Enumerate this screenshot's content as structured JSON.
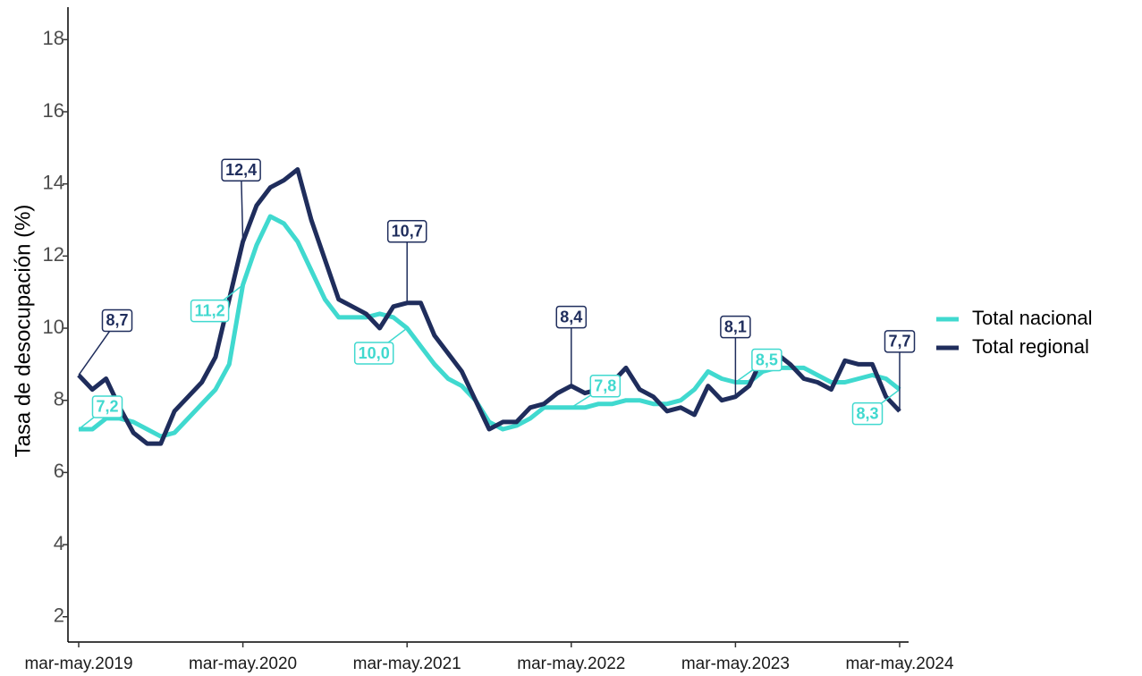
{
  "chart_data": {
    "type": "line",
    "y_label": "Tasa de desocupación (%)",
    "categories": [
      "mar-may.2019",
      null,
      null,
      null,
      null,
      null,
      null,
      null,
      null,
      null,
      null,
      null,
      "mar-may.2020",
      null,
      null,
      null,
      null,
      null,
      null,
      null,
      null,
      null,
      null,
      null,
      "mar-may.2021",
      null,
      null,
      null,
      null,
      null,
      null,
      null,
      null,
      null,
      null,
      null,
      "mar-may.2022",
      null,
      null,
      null,
      null,
      null,
      null,
      null,
      null,
      null,
      null,
      null,
      "mar-may.2023",
      null,
      null,
      null,
      null,
      null,
      null,
      null,
      null,
      null,
      null,
      null,
      "mar-may.2024"
    ],
    "series": [
      {
        "name": "Total nacional",
        "color": "#40d9cf",
        "values": [
          7.2,
          7.2,
          7.5,
          7.5,
          7.4,
          7.2,
          7.0,
          7.1,
          7.5,
          7.9,
          8.3,
          9.0,
          11.2,
          12.3,
          13.1,
          12.9,
          12.4,
          11.6,
          10.8,
          10.3,
          10.3,
          10.3,
          10.4,
          10.3,
          10.0,
          9.5,
          9.0,
          8.6,
          8.4,
          8.0,
          7.4,
          7.2,
          7.3,
          7.5,
          7.8,
          7.8,
          7.8,
          7.8,
          7.9,
          7.9,
          8.0,
          8.0,
          7.9,
          7.9,
          8.0,
          8.3,
          8.8,
          8.6,
          8.5,
          8.5,
          8.8,
          8.9,
          8.9,
          8.9,
          8.7,
          8.5,
          8.5,
          8.6,
          8.7,
          8.6,
          8.3
        ],
        "value_labels": [
          "7,2",
          null,
          null,
          null,
          null,
          null,
          null,
          null,
          null,
          null,
          null,
          null,
          "11,2",
          null,
          null,
          null,
          null,
          null,
          null,
          null,
          null,
          null,
          null,
          null,
          "10,0",
          null,
          null,
          null,
          null,
          null,
          null,
          null,
          null,
          null,
          null,
          null,
          "7,8",
          null,
          null,
          null,
          null,
          null,
          null,
          null,
          null,
          null,
          null,
          null,
          "8,5",
          null,
          null,
          null,
          null,
          null,
          null,
          null,
          null,
          null,
          null,
          null,
          "8,3"
        ]
      },
      {
        "name": "Total regional",
        "color": "#1f2d5c",
        "values": [
          8.7,
          8.3,
          8.6,
          7.8,
          7.1,
          6.8,
          6.8,
          7.7,
          8.1,
          8.5,
          9.2,
          10.8,
          12.4,
          13.4,
          13.9,
          14.1,
          14.4,
          13.0,
          11.9,
          10.8,
          10.6,
          10.4,
          10.0,
          10.6,
          10.7,
          10.7,
          9.8,
          9.3,
          8.8,
          8.0,
          7.2,
          7.4,
          7.4,
          7.8,
          7.9,
          8.2,
          8.4,
          8.2,
          8.3,
          8.5,
          8.9,
          8.3,
          8.1,
          7.7,
          7.8,
          7.6,
          8.4,
          8.0,
          8.1,
          8.4,
          9.2,
          9.3,
          9.0,
          8.6,
          8.5,
          8.3,
          9.1,
          9.0,
          9.0,
          8.1,
          7.7
        ],
        "value_labels": [
          "8,7",
          null,
          null,
          null,
          null,
          null,
          null,
          null,
          null,
          null,
          null,
          null,
          "12,4",
          null,
          null,
          null,
          null,
          null,
          null,
          null,
          null,
          null,
          null,
          null,
          "10,7",
          null,
          null,
          null,
          null,
          null,
          null,
          null,
          null,
          null,
          null,
          null,
          "8,4",
          null,
          null,
          null,
          null,
          null,
          null,
          null,
          null,
          null,
          null,
          null,
          "8,1",
          null,
          null,
          null,
          null,
          null,
          null,
          null,
          null,
          null,
          null,
          null,
          "7,7"
        ]
      }
    ],
    "ylim": [
      1.3,
      18.9
    ],
    "yticks": [
      2,
      4,
      6,
      8,
      10,
      12,
      14,
      16,
      18
    ],
    "grid": false,
    "legend": "right"
  }
}
